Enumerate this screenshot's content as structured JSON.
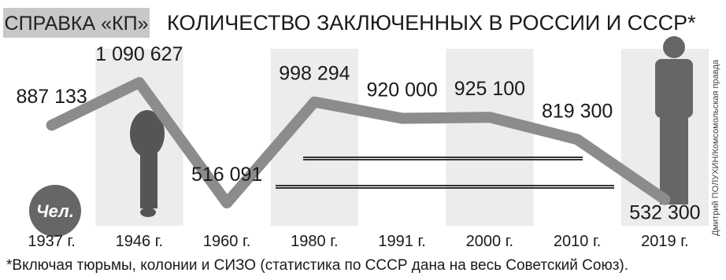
{
  "badge": "СПРАВКА «КП»",
  "credit": "Дмитрий ПОЛУХИН/Комсомольская правда",
  "chart_data": {
    "type": "line",
    "title": "КОЛИЧЕСТВО ЗАКЛЮЧЕННЫХ В РОССИИ И СССР*",
    "unit": "Чел.",
    "footnote": "*Включая тюрьмы, колонии и СИЗО (статистика по СССР дана на весь Советский Союз).",
    "categories": [
      "1937 г.",
      "1946 г.",
      "1960 г.",
      "1980 г.",
      "1991 г.",
      "2000 г.",
      "2010 г.",
      "2019 г."
    ],
    "values": [
      887133,
      1090627,
      516091,
      998294,
      920000,
      925100,
      819300,
      532300
    ],
    "value_labels": [
      "887 133",
      "1 090 627",
      "516 091",
      "998 294",
      "920 000",
      "925 100",
      "819 300",
      "532 300"
    ],
    "color": "#8c8c8c"
  }
}
